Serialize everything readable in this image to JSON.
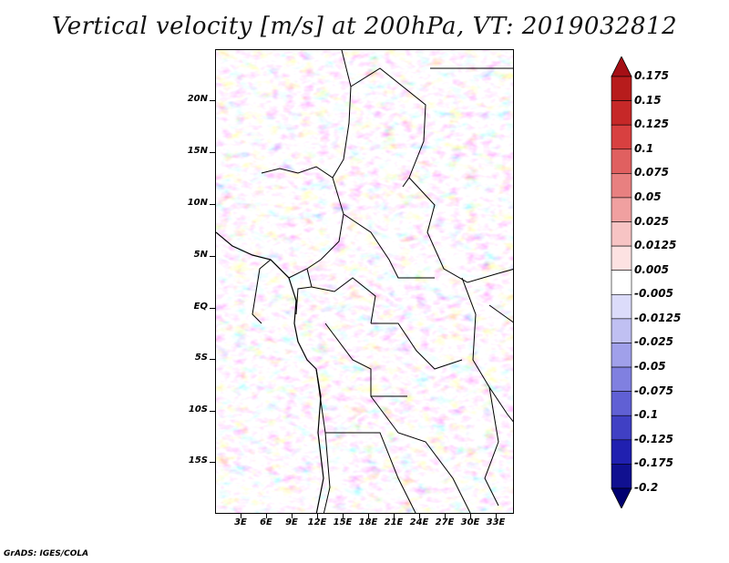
{
  "title": "Vertical velocity [m/s] at 200hPa, VT: 2019032812",
  "footer": "GrADS: IGES/COLA",
  "lat_labels": [
    "20N",
    "15N",
    "10N",
    "5N",
    "EQ",
    "5S",
    "10S",
    "15S"
  ],
  "lon_labels": [
    "3E",
    "6E",
    "9E",
    "12E",
    "15E",
    "18E",
    "21E",
    "24E",
    "27E",
    "30E",
    "33E"
  ],
  "colorbar": {
    "labels": [
      "0.175",
      "0.15",
      "0.125",
      "0.1",
      "0.075",
      "0.05",
      "0.025",
      "0.0125",
      "0.005",
      "-0.005",
      "-0.0125",
      "-0.025",
      "-0.05",
      "-0.075",
      "-0.1",
      "-0.125",
      "-0.175",
      "-0.2"
    ],
    "colors": [
      "#a50f15",
      "#b71c1c",
      "#c62828",
      "#d84040",
      "#e06060",
      "#e88080",
      "#f0a0a0",
      "#f7c4c4",
      "#fde2e2",
      "#ffffff",
      "#dcdcfa",
      "#c0c0f2",
      "#a0a0ea",
      "#8080e0",
      "#6060d4",
      "#4040c4",
      "#2020b0",
      "#101090",
      "#000070"
    ]
  }
}
